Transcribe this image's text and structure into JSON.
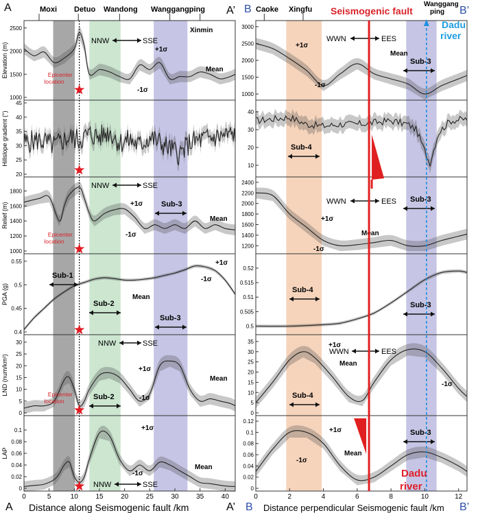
{
  "left": {
    "corner_start": "A",
    "corner_end": "A’",
    "xlabel": "Distance along Seismogenic fault /km",
    "xticks": [
      "0",
      "5",
      "10",
      "15",
      "20",
      "25",
      "30",
      "35",
      "40"
    ],
    "places": [
      "Moxi",
      "Detuo",
      "Wandong",
      "Wanggangping",
      "Xinmin"
    ]
  },
  "right": {
    "corner_start": "B",
    "corner_end": "B’",
    "xlabel": "Distance perpendicular Seismogenic fault /km",
    "xticks": [
      "0",
      "2",
      "4",
      "6",
      "8",
      "10",
      "12"
    ],
    "places": [
      "Caoke",
      "Xingfu",
      "Wanggang",
      "ping"
    ],
    "fault_title": "Seismogenic fault",
    "river_top": [
      "Dadu",
      "river"
    ],
    "river_bottom": [
      "Dadu",
      "river"
    ]
  },
  "labels": {
    "epicenter": [
      "Epicenter",
      "location"
    ],
    "nnw": "NNW",
    "sse": "SSE",
    "wwn": "WWN",
    "ees": "EES",
    "plus": "+1σ",
    "minus": "-1σ",
    "mean": "Mean",
    "sub1": "Sub-1",
    "sub2": "Sub-2",
    "sub3": "Sub-3",
    "sub4": "Sub-4"
  },
  "colors": {
    "gray_band": "#8a8a8a",
    "green_band": "#b6dcbc",
    "purple_band": "#b3b1dc",
    "orange_band": "#f3c6a5",
    "fault": "#e02020",
    "river": "#1e8fe0",
    "title_red": "#d8232a"
  },
  "chart_data": [
    {
      "type": "area",
      "panel": "Elevation",
      "ylabel": "Elevation (m)",
      "yticks": [
        "1000",
        "1500",
        "2000",
        "2500"
      ],
      "ylim": [
        1000,
        2600
      ],
      "xlim": [
        0,
        42
      ],
      "x": [
        0,
        2,
        4,
        6,
        8,
        10,
        11,
        12,
        13,
        15,
        17,
        19,
        21,
        23,
        25,
        27,
        29,
        31,
        33,
        35,
        37,
        39,
        41,
        42
      ],
      "values": [
        2050,
        1900,
        1980,
        1750,
        1850,
        2050,
        2400,
        2100,
        1500,
        1600,
        1550,
        1450,
        1400,
        1700,
        1600,
        1750,
        1400,
        1450,
        1450,
        1550,
        1500,
        1400,
        1450,
        1500
      ]
    },
    {
      "type": "area",
      "panel": "Hillslope gradient",
      "ylabel": "Hillslope gradient (°)",
      "yticks": [
        "20",
        "25",
        "30",
        "35",
        "40",
        "45"
      ],
      "ylim": [
        20,
        45
      ],
      "xlim": [
        0,
        42
      ],
      "x": [
        0,
        3,
        6,
        9,
        11,
        13,
        15,
        17,
        19,
        21,
        23,
        25,
        27,
        29,
        31,
        33,
        35,
        38,
        42
      ],
      "values": [
        31,
        32,
        30,
        33,
        32,
        34,
        33,
        35,
        31,
        32,
        30,
        33,
        31,
        29,
        27,
        31,
        32,
        33,
        34
      ]
    },
    {
      "type": "area",
      "panel": "Relief",
      "ylabel": "Relief (m)",
      "yticks": [
        "1000",
        "1200",
        "1400",
        "1600",
        "1800"
      ],
      "ylim": [
        1000,
        1950
      ],
      "xlim": [
        0,
        42
      ],
      "x": [
        0,
        3,
        5,
        7,
        8,
        9,
        11,
        12,
        13,
        14,
        16,
        18,
        20,
        22,
        24,
        26,
        28,
        30,
        32,
        34,
        36,
        38,
        40,
        42
      ],
      "values": [
        1650,
        1700,
        1720,
        1400,
        1600,
        1750,
        1850,
        1700,
        1500,
        1400,
        1500,
        1550,
        1560,
        1450,
        1300,
        1350,
        1300,
        1350,
        1300,
        1400,
        1300,
        1350,
        1300,
        1280
      ]
    },
    {
      "type": "line",
      "panel": "PGA",
      "ylabel": "PGA (g)",
      "yticks": [
        "0.4",
        "0.45",
        "0.5",
        "0.55"
      ],
      "ylim": [
        0.4,
        0.56
      ],
      "xlim": [
        0,
        42
      ],
      "x": [
        0,
        2,
        4,
        6,
        8,
        10,
        12,
        14,
        16,
        18,
        20,
        22,
        24,
        26,
        28,
        30,
        32,
        34,
        36,
        38,
        40,
        42
      ],
      "values": [
        0.405,
        0.43,
        0.45,
        0.47,
        0.485,
        0.498,
        0.505,
        0.512,
        0.515,
        0.513,
        0.51,
        0.51,
        0.512,
        0.515,
        0.52,
        0.525,
        0.532,
        0.54,
        0.538,
        0.53,
        0.51,
        0.48
      ]
    },
    {
      "type": "area",
      "panel": "LND",
      "ylabel": "LND (num/km²)",
      "yticks": [
        "0",
        "5",
        "10",
        "15",
        "20",
        "25",
        "30"
      ],
      "ylim": [
        0,
        32
      ],
      "xlim": [
        0,
        42
      ],
      "x": [
        0,
        2,
        4,
        6,
        8,
        9,
        10,
        11,
        12,
        13,
        15,
        17,
        19,
        21,
        23,
        25,
        27,
        29,
        31,
        33,
        35,
        37,
        39,
        41,
        42
      ],
      "values": [
        2,
        3,
        3,
        5,
        14,
        15,
        10,
        3,
        5,
        10,
        16,
        17,
        15,
        10,
        5,
        8,
        20,
        22,
        20,
        10,
        5,
        6,
        5,
        4,
        3
      ]
    },
    {
      "type": "area",
      "panel": "LAP",
      "ylabel": "LAP",
      "yticks": [
        "0",
        "0.02",
        "0.04",
        "0.06",
        "0.08",
        "0.1"
      ],
      "ylim": [
        0,
        0.12
      ],
      "xlim": [
        0,
        42
      ],
      "x": [
        0,
        2,
        4,
        6,
        7,
        8,
        9,
        10,
        11,
        12,
        13,
        15,
        17,
        19,
        21,
        23,
        25,
        27,
        29,
        31,
        33,
        35,
        37,
        40,
        42
      ],
      "values": [
        0.003,
        0.005,
        0.007,
        0.015,
        0.025,
        0.04,
        0.045,
        0.02,
        0.01,
        0.02,
        0.05,
        0.095,
        0.09,
        0.05,
        0.03,
        0.04,
        0.03,
        0.045,
        0.04,
        0.03,
        0.02,
        0.01,
        0.008,
        0.004,
        0.003
      ]
    },
    {
      "type": "area",
      "panel": "Elevation (perpendicular)",
      "yticks": [
        "1000",
        "1500",
        "2000",
        "2500",
        "3000"
      ],
      "ylim": [
        900,
        3100
      ],
      "xlim": [
        0,
        12.5
      ],
      "x": [
        0,
        1,
        2,
        3,
        4,
        5,
        6,
        7,
        8,
        9,
        10,
        11,
        12,
        12.5
      ],
      "values": [
        2500,
        2350,
        2050,
        1700,
        1250,
        1600,
        1900,
        1600,
        1450,
        1300,
        1000,
        1250,
        1450,
        1550
      ]
    },
    {
      "type": "area",
      "panel": "Hillslope gradient (perpendicular)",
      "yticks": [
        "10",
        "20",
        "30",
        "40"
      ],
      "ylim": [
        5,
        45
      ],
      "xlim": [
        0,
        12.5
      ],
      "x": [
        0,
        1,
        2,
        3,
        4,
        5,
        6,
        7,
        8,
        9,
        9.5,
        10,
        10.3,
        10.8,
        11.5,
        12.5
      ],
      "values": [
        35,
        36,
        37,
        33,
        32,
        33,
        33,
        34,
        35,
        33,
        30,
        18,
        11,
        28,
        35,
        36
      ]
    },
    {
      "type": "area",
      "panel": "Relief (perpendicular)",
      "yticks": [
        "1200",
        "1400",
        "1600",
        "1800",
        "2000",
        "2200",
        "2400"
      ],
      "ylim": [
        1100,
        2450
      ],
      "xlim": [
        0,
        12.5
      ],
      "x": [
        0,
        1,
        2,
        3,
        4,
        5,
        6,
        7,
        8,
        9,
        10,
        11,
        12,
        12.5
      ],
      "values": [
        2200,
        2150,
        1800,
        1550,
        1300,
        1200,
        1220,
        1260,
        1300,
        1200,
        1200,
        1300,
        1380,
        1420
      ]
    },
    {
      "type": "line",
      "panel": "PGA (perpendicular)",
      "yticks": [
        "0.5",
        "0.505",
        "0.51",
        "0.515",
        "0.52"
      ],
      "ylim": [
        0.498,
        0.524
      ],
      "xlim": [
        0,
        12.5
      ],
      "x": [
        0,
        2,
        4,
        5,
        6,
        7,
        8,
        9,
        10,
        11,
        12,
        12.5
      ],
      "values": [
        0.5,
        0.5,
        0.5005,
        0.501,
        0.5025,
        0.5045,
        0.508,
        0.512,
        0.516,
        0.5185,
        0.519,
        0.5185
      ]
    },
    {
      "type": "area",
      "panel": "LND (perpendicular)",
      "yticks": [
        "0",
        "5",
        "10",
        "15",
        "20",
        "25",
        "30",
        "35"
      ],
      "ylim": [
        0,
        37
      ],
      "xlim": [
        0,
        12.5
      ],
      "x": [
        0,
        1,
        2,
        2.8,
        3.5,
        4.5,
        5.5,
        6.3,
        7,
        8,
        9,
        10,
        11,
        12,
        12.5
      ],
      "values": [
        5,
        15,
        26,
        30,
        27,
        18,
        8,
        6,
        15,
        26,
        31,
        30,
        22,
        12,
        8
      ]
    },
    {
      "type": "area",
      "panel": "LAP (perpendicular)",
      "yticks": [
        "0",
        "0.02",
        "0.04",
        "0.06",
        "0.08",
        "0.1",
        "0.12"
      ],
      "ylim": [
        0,
        0.125
      ],
      "xlim": [
        0,
        12.5
      ],
      "x": [
        0,
        1,
        2,
        3,
        4,
        5,
        6,
        7,
        8,
        9,
        10,
        11,
        12,
        12.5
      ],
      "values": [
        0.03,
        0.07,
        0.1,
        0.1,
        0.08,
        0.04,
        0.015,
        0.02,
        0.04,
        0.06,
        0.065,
        0.055,
        0.04,
        0.03
      ]
    }
  ]
}
